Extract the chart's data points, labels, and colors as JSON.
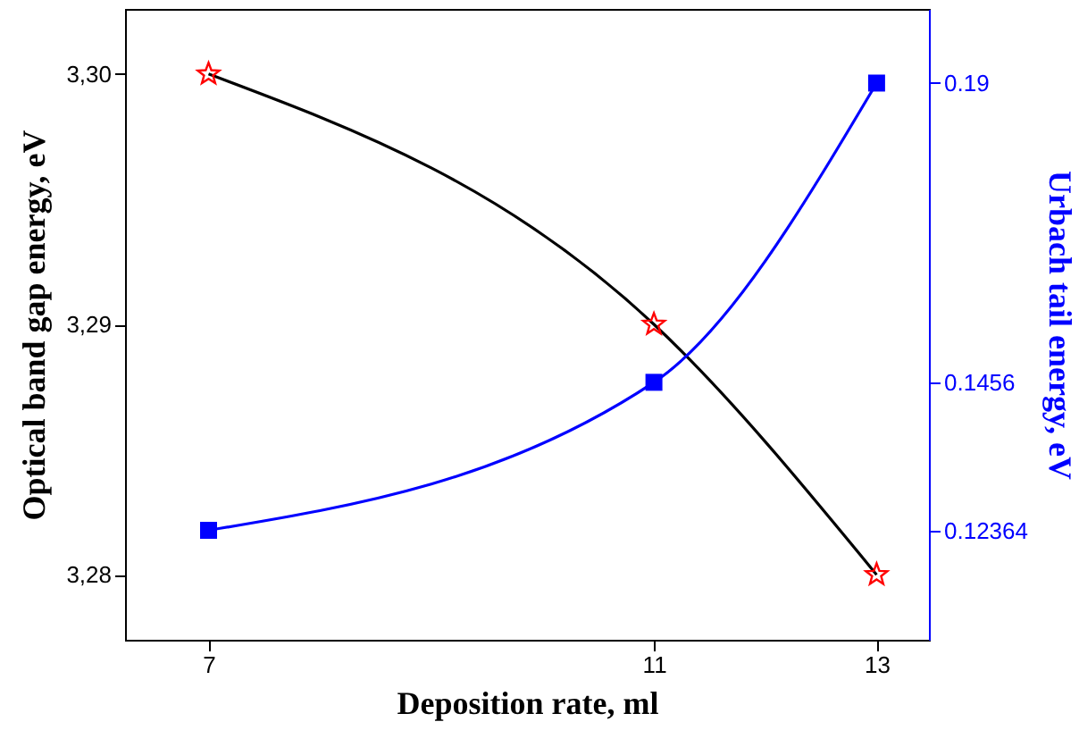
{
  "chart_data": {
    "type": "line",
    "xlabel": "Deposition rate, ml",
    "ylabel": "Optical band gap energy, eV",
    "y2label": "Urbach tail energy, eV",
    "x": [
      7,
      11,
      13
    ],
    "xlim": [
      6.25,
      13.47
    ],
    "xticks": [
      7,
      11,
      13
    ],
    "ylim": [
      3.2774,
      3.3026
    ],
    "yticks": [
      {
        "value": 3.28,
        "label": "3,28"
      },
      {
        "value": 3.29,
        "label": "3,29"
      },
      {
        "value": 3.3,
        "label": "3,30"
      }
    ],
    "y2lim": [
      0.1074,
      0.201
    ],
    "y2ticks": [
      0.12364,
      0.1456,
      0.19
    ],
    "grid": false,
    "line_style": "solid",
    "series": [
      {
        "color": "#000000",
        "colors": [
          "#ff0000",
          "#ff0000",
          "#ff0000"
        ],
        "marker": "star",
        "values": [
          3.3,
          3.29,
          3.28
        ]
      },
      {
        "color": "#0000ff",
        "marker": "square",
        "axis": "y2",
        "values": [
          0.12364,
          0.1456,
          0.19
        ]
      }
    ]
  }
}
